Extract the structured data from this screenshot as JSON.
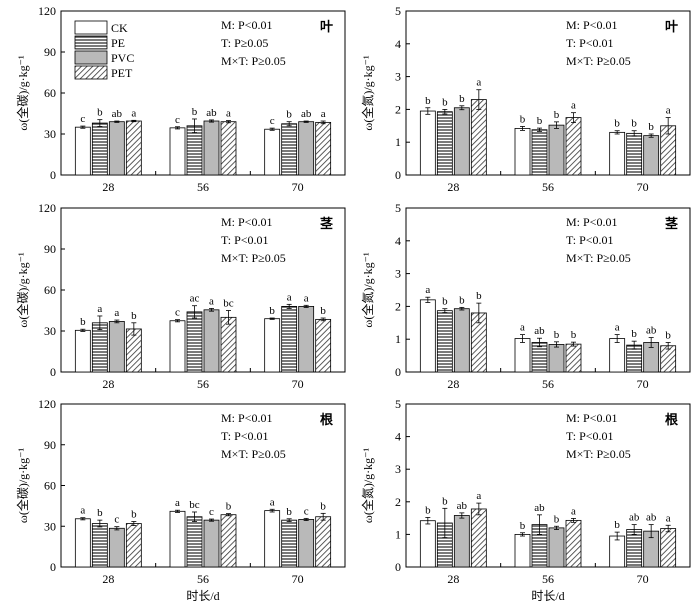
{
  "figure": {
    "xlabel": "时长/d",
    "ylabel_carbon": "ω(全碳)/g·kg⁻¹",
    "ylabel_nitrogen": "ω(全氮)/g·kg⁻¹",
    "legend": [
      "CK",
      "PE",
      "PVC",
      "PET"
    ],
    "colors": {
      "CK": "#ffffff",
      "PE": "#6e6e6e",
      "PVC": "#b4b4b4",
      "PET": "#8a8a8a"
    },
    "patterns": {
      "CK": "plain",
      "PE": "horizontal-lines",
      "PVC": "solid-gray",
      "PET": "diagonal-lines"
    }
  },
  "chart_data": [
    {
      "type": "bar",
      "organ": "叶",
      "nutrient": "C",
      "categories": [
        "28",
        "56",
        "70"
      ],
      "ylim": [
        0,
        120
      ],
      "yticks": [
        0,
        30,
        60,
        90,
        120
      ],
      "stats": [
        "M: P<0.01",
        "T: P≥0.05",
        "M×T: P≥0.05"
      ],
      "series": [
        {
          "name": "CK",
          "values": [
            35,
            34.5,
            33.5
          ],
          "errors": [
            0.8,
            0.8,
            0.8
          ],
          "letters": [
            "c",
            "c",
            "c"
          ]
        },
        {
          "name": "PE",
          "values": [
            38,
            36,
            37.5
          ],
          "errors": [
            2.5,
            5,
            1.5
          ],
          "letters": [
            "b",
            "b",
            "b"
          ]
        },
        {
          "name": "PVC",
          "values": [
            39,
            39.5,
            39
          ],
          "errors": [
            0.5,
            0.8,
            0.5
          ],
          "letters": [
            "ab",
            "ab",
            "ab"
          ]
        },
        {
          "name": "PET",
          "values": [
            39.5,
            39,
            38.5
          ],
          "errors": [
            0.5,
            0.8,
            1
          ],
          "letters": [
            "a",
            "a",
            "a"
          ]
        }
      ]
    },
    {
      "type": "bar",
      "organ": "叶",
      "nutrient": "N",
      "categories": [
        "28",
        "56",
        "70"
      ],
      "ylim": [
        0,
        5
      ],
      "yticks": [
        0,
        1,
        2,
        3,
        4,
        5
      ],
      "stats": [
        "M: P<0.01",
        "T: P<0.01",
        "M×T: P≥0.05"
      ],
      "series": [
        {
          "name": "CK",
          "values": [
            1.95,
            1.42,
            1.3
          ],
          "errors": [
            0.1,
            0.06,
            0.05
          ],
          "letters": [
            "b",
            "b",
            "b"
          ]
        },
        {
          "name": "PE",
          "values": [
            1.93,
            1.38,
            1.27
          ],
          "errors": [
            0.07,
            0.05,
            0.08
          ],
          "letters": [
            "b",
            "b",
            "b"
          ]
        },
        {
          "name": "PVC",
          "values": [
            2.05,
            1.52,
            1.2
          ],
          "errors": [
            0.06,
            0.1,
            0.05
          ],
          "letters": [
            "b",
            "b",
            "b"
          ]
        },
        {
          "name": "PET",
          "values": [
            2.3,
            1.75,
            1.5
          ],
          "errors": [
            0.3,
            0.15,
            0.25
          ],
          "letters": [
            "a",
            "a",
            "a"
          ]
        }
      ]
    },
    {
      "type": "bar",
      "organ": "茎",
      "nutrient": "C",
      "categories": [
        "28",
        "56",
        "70"
      ],
      "ylim": [
        0,
        120
      ],
      "yticks": [
        0,
        30,
        60,
        90,
        120
      ],
      "stats": [
        "M: P<0.01",
        "T: P<0.01",
        "M×T: P≥0.05"
      ],
      "series": [
        {
          "name": "CK",
          "values": [
            30.5,
            37.5,
            39
          ],
          "errors": [
            0.8,
            0.8,
            0.5
          ],
          "letters": [
            "b",
            "c",
            "b"
          ]
        },
        {
          "name": "PE",
          "values": [
            36,
            44,
            48
          ],
          "errors": [
            5,
            4.5,
            1.5
          ],
          "letters": [
            "a",
            "ac",
            "a"
          ]
        },
        {
          "name": "PVC",
          "values": [
            37,
            45.5,
            48
          ],
          "errors": [
            1,
            1,
            0.8
          ],
          "letters": [
            "a",
            "a",
            "a"
          ]
        },
        {
          "name": "PET",
          "values": [
            31.5,
            40,
            38.5
          ],
          "errors": [
            4.5,
            5,
            1
          ],
          "letters": [
            "b",
            "bc",
            "b"
          ]
        }
      ]
    },
    {
      "type": "bar",
      "organ": "茎",
      "nutrient": "N",
      "categories": [
        "28",
        "56",
        "70"
      ],
      "ylim": [
        0,
        5
      ],
      "yticks": [
        0,
        1,
        2,
        3,
        4,
        5
      ],
      "stats": [
        "M: P<0.01",
        "T: P<0.01",
        "M×T: P≥0.05"
      ],
      "series": [
        {
          "name": "CK",
          "values": [
            2.2,
            1.02,
            1.02
          ],
          "errors": [
            0.08,
            0.12,
            0.12
          ],
          "letters": [
            "a",
            "a",
            "a"
          ]
        },
        {
          "name": "PE",
          "values": [
            1.87,
            0.9,
            0.82
          ],
          "errors": [
            0.06,
            0.13,
            0.12
          ],
          "letters": [
            "b",
            "ab",
            "b"
          ]
        },
        {
          "name": "PVC",
          "values": [
            1.93,
            0.84,
            0.9
          ],
          "errors": [
            0.04,
            0.08,
            0.15
          ],
          "letters": [
            "b",
            "b",
            "ab"
          ]
        },
        {
          "name": "PET",
          "values": [
            1.8,
            0.85,
            0.8
          ],
          "errors": [
            0.3,
            0.06,
            0.1
          ],
          "letters": [
            "b",
            "b",
            "b"
          ]
        }
      ]
    },
    {
      "type": "bar",
      "organ": "根",
      "nutrient": "C",
      "categories": [
        "28",
        "56",
        "70"
      ],
      "ylim": [
        0,
        120
      ],
      "yticks": [
        0,
        30,
        60,
        90,
        120
      ],
      "stats": [
        "M: P<0.01",
        "T: P<0.01",
        "M×T: P≥0.05"
      ],
      "series": [
        {
          "name": "CK",
          "values": [
            35.5,
            41,
            41.5
          ],
          "errors": [
            0.8,
            0.8,
            1
          ],
          "letters": [
            "a",
            "a",
            "a"
          ]
        },
        {
          "name": "PE",
          "values": [
            32,
            37,
            34.5
          ],
          "errors": [
            2.5,
            3.5,
            1
          ],
          "letters": [
            "b",
            "bc",
            "b"
          ]
        },
        {
          "name": "PVC",
          "values": [
            28.5,
            34.5,
            35
          ],
          "errors": [
            1.2,
            0.8,
            0.8
          ],
          "letters": [
            "c",
            "c",
            "c"
          ]
        },
        {
          "name": "PET",
          "values": [
            32,
            38.5,
            37
          ],
          "errors": [
            1.5,
            0.8,
            2.5
          ],
          "letters": [
            "b",
            "b",
            "b"
          ]
        }
      ]
    },
    {
      "type": "bar",
      "organ": "根",
      "nutrient": "N",
      "categories": [
        "28",
        "56",
        "70"
      ],
      "ylim": [
        0,
        5
      ],
      "yticks": [
        0,
        1,
        2,
        3,
        4,
        5
      ],
      "stats": [
        "M: P<0.01",
        "T: P<0.01",
        "M×T: P≥0.05"
      ],
      "series": [
        {
          "name": "CK",
          "values": [
            1.42,
            1.0,
            0.95
          ],
          "errors": [
            0.1,
            0.05,
            0.12
          ],
          "letters": [
            "b",
            "b",
            "b"
          ]
        },
        {
          "name": "PE",
          "values": [
            1.35,
            1.3,
            1.15
          ],
          "errors": [
            0.45,
            0.3,
            0.15
          ],
          "letters": [
            "b",
            "ab",
            "ab"
          ]
        },
        {
          "name": "PVC",
          "values": [
            1.58,
            1.2,
            1.1
          ],
          "errors": [
            0.08,
            0.05,
            0.2
          ],
          "letters": [
            "ab",
            "b",
            "ab"
          ]
        },
        {
          "name": "PET",
          "values": [
            1.78,
            1.43,
            1.18
          ],
          "errors": [
            0.18,
            0.06,
            0.1
          ],
          "letters": [
            "a",
            "a",
            "a"
          ]
        }
      ]
    }
  ]
}
